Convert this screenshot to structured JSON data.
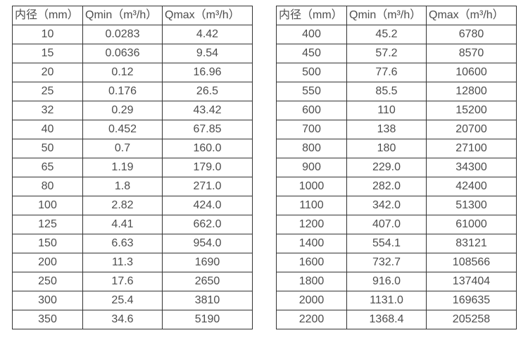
{
  "page": {
    "background": "#ffffff",
    "text_color": "#4d4d4d",
    "border_color": "#333333"
  },
  "tables": [
    {
      "id": "small-diameter-flow-table",
      "headers": [
        "内径（mm）",
        "Qmin（m³/h）",
        "Qmax（m³/h）"
      ],
      "rows": [
        [
          "10",
          "0.0283",
          "4.42"
        ],
        [
          "15",
          "0.0636",
          "9.54"
        ],
        [
          "20",
          "0.12",
          "16.96"
        ],
        [
          "25",
          "0.176",
          "26.5"
        ],
        [
          "32",
          "0.29",
          "43.42"
        ],
        [
          "40",
          "0.452",
          "67.85"
        ],
        [
          "50",
          "0.7",
          "160.0"
        ],
        [
          "65",
          "1.19",
          "179.0"
        ],
        [
          "80",
          "1.8",
          "271.0"
        ],
        [
          "100",
          "2.82",
          "424.0"
        ],
        [
          "125",
          "4.41",
          "662.0"
        ],
        [
          "150",
          "6.63",
          "954.0"
        ],
        [
          "200",
          "11.3",
          "1690"
        ],
        [
          "250",
          "17.6",
          "2650"
        ],
        [
          "300",
          "25.4",
          "3810"
        ],
        [
          "350",
          "34.6",
          "5190"
        ]
      ]
    },
    {
      "id": "large-diameter-flow-table",
      "headers": [
        "内径（mm）",
        "Qmin（m³/h）",
        "Qmax（m³/h）"
      ],
      "rows": [
        [
          "400",
          "45.2",
          "6780"
        ],
        [
          "450",
          "57.2",
          "8570"
        ],
        [
          "500",
          "77.6",
          "10600"
        ],
        [
          "550",
          "85.5",
          "12800"
        ],
        [
          "600",
          "110",
          "15200"
        ],
        [
          "700",
          "138",
          "20700"
        ],
        [
          "800",
          "180",
          "27100"
        ],
        [
          "900",
          "229.0",
          "34300"
        ],
        [
          "1000",
          "282.0",
          "42400"
        ],
        [
          "1100",
          "342.0",
          "51300"
        ],
        [
          "1200",
          "407.0",
          "61000"
        ],
        [
          "1400",
          "554.1",
          "83121"
        ],
        [
          "1600",
          "732.7",
          "108566"
        ],
        [
          "1800",
          "916.0",
          "137404"
        ],
        [
          "2000",
          "1131.0",
          "169635"
        ],
        [
          "2200",
          "1368.4",
          "205258"
        ]
      ]
    }
  ]
}
